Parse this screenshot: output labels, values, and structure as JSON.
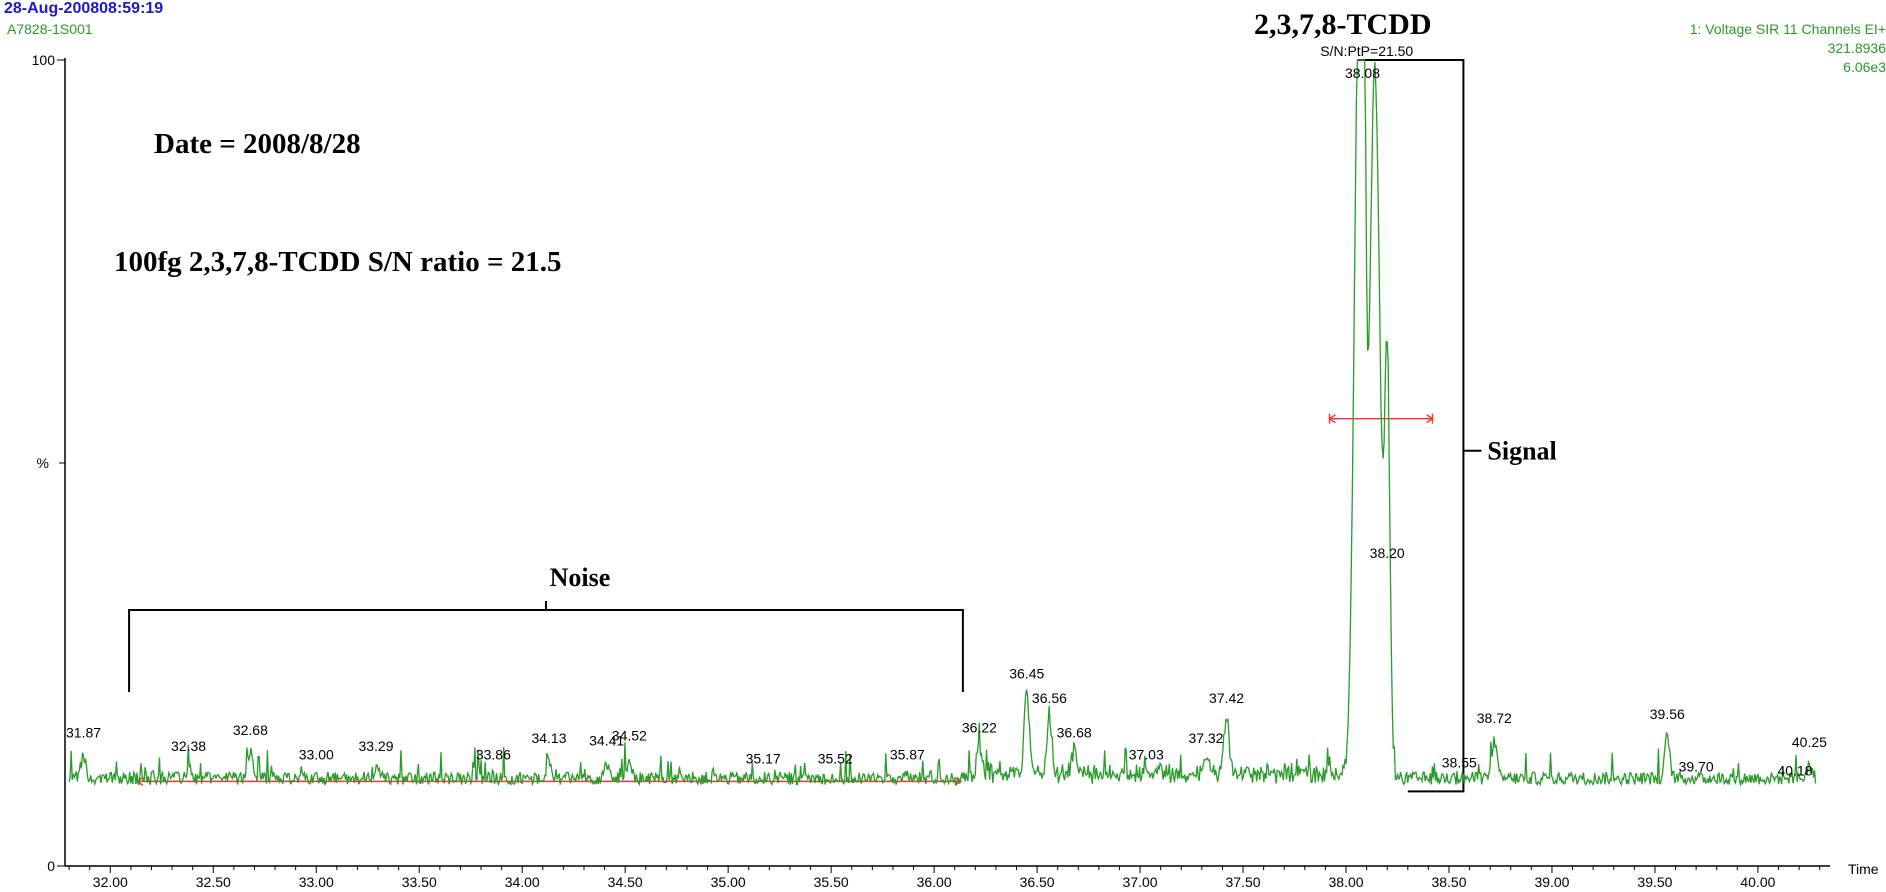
{
  "header": {
    "datetime": "28-Aug-200808:59:19",
    "sample": "A7828-1S001",
    "channel": "1: Voltage SIR 11 Channels EI+",
    "mass": "321.8936",
    "intensity": "6.06e3"
  },
  "annotations": {
    "date_text": "Date = 2008/8/28",
    "ratio_text": "100fg 2,3,7,8-TCDD S/N ratio = 21.5",
    "compound": "2,3,7,8-TCDD",
    "sn_text": "S/N:PtP=21.50",
    "noise_label": "Noise",
    "signal_label": "Signal"
  },
  "colors": {
    "trace": "#2a9a2a",
    "marker": "#ff3030",
    "header_date": "#1a1acc"
  },
  "chart_data": {
    "type": "line",
    "x_unit_label": "Time",
    "y_unit_label": "%",
    "y_top_label": "100",
    "y_bottom_label": "0",
    "xlim": [
      31.78,
      40.35
    ],
    "ylim": [
      0,
      100
    ],
    "x_ticks": [
      "32.00",
      "32.50",
      "33.00",
      "33.50",
      "34.00",
      "34.50",
      "35.00",
      "35.50",
      "36.00",
      "36.50",
      "37.00",
      "37.50",
      "38.00",
      "38.50",
      "39.00",
      "39.50",
      "40.00"
    ],
    "grid": false,
    "peak_labels": [
      {
        "text": "31.87",
        "x": 31.87,
        "y": 15.2
      },
      {
        "text": "32.38",
        "x": 32.38,
        "y": 13.5
      },
      {
        "text": "32.68",
        "x": 32.68,
        "y": 15.5
      },
      {
        "text": "33.00",
        "x": 33.0,
        "y": 12.5
      },
      {
        "text": "33.29",
        "x": 33.29,
        "y": 13.5
      },
      {
        "text": "33.86",
        "x": 33.86,
        "y": 12.5
      },
      {
        "text": "34.13",
        "x": 34.13,
        "y": 14.5
      },
      {
        "text": "34.41",
        "x": 34.41,
        "y": 14.2
      },
      {
        "text": "34.52",
        "x": 34.52,
        "y": 14.8
      },
      {
        "text": "35.17",
        "x": 35.17,
        "y": 12.0
      },
      {
        "text": "35.52",
        "x": 35.52,
        "y": 12.0
      },
      {
        "text": "35.87",
        "x": 35.87,
        "y": 12.5
      },
      {
        "text": "36.22",
        "x": 36.22,
        "y": 15.8
      },
      {
        "text": "36.45",
        "x": 36.45,
        "y": 22.5
      },
      {
        "text": "36.56",
        "x": 36.56,
        "y": 19.5
      },
      {
        "text": "36.68",
        "x": 36.68,
        "y": 15.2
      },
      {
        "text": "37.03",
        "x": 37.03,
        "y": 12.5
      },
      {
        "text": "37.32",
        "x": 37.32,
        "y": 14.5
      },
      {
        "text": "37.42",
        "x": 37.42,
        "y": 19.5
      },
      {
        "text": "38.08",
        "x": 38.08,
        "y": 97.0
      },
      {
        "text": "38.20",
        "x": 38.2,
        "y": 37.5
      },
      {
        "text": "38.55",
        "x": 38.55,
        "y": 11.5
      },
      {
        "text": "38.72",
        "x": 38.72,
        "y": 17.0
      },
      {
        "text": "39.56",
        "x": 39.56,
        "y": 17.5
      },
      {
        "text": "39.70",
        "x": 39.7,
        "y": 11.0
      },
      {
        "text": "40.18",
        "x": 40.18,
        "y": 10.5
      },
      {
        "text": "40.25",
        "x": 40.25,
        "y": 14.0
      }
    ],
    "baseline_level": 10.8,
    "main_peak": {
      "x": 38.12,
      "y": 100
    },
    "shoulder_peak": {
      "x": 38.2,
      "y": 36.0
    },
    "noise_span": [
      32.13,
      36.13
    ],
    "noise_level": 10.5,
    "peak_width_span": [
      37.92,
      38.42
    ],
    "peak_width_level": 55.5,
    "signal_bracket": {
      "x_left": 38.3,
      "x_right": 38.57,
      "top": 100,
      "bottom": 10
    }
  }
}
